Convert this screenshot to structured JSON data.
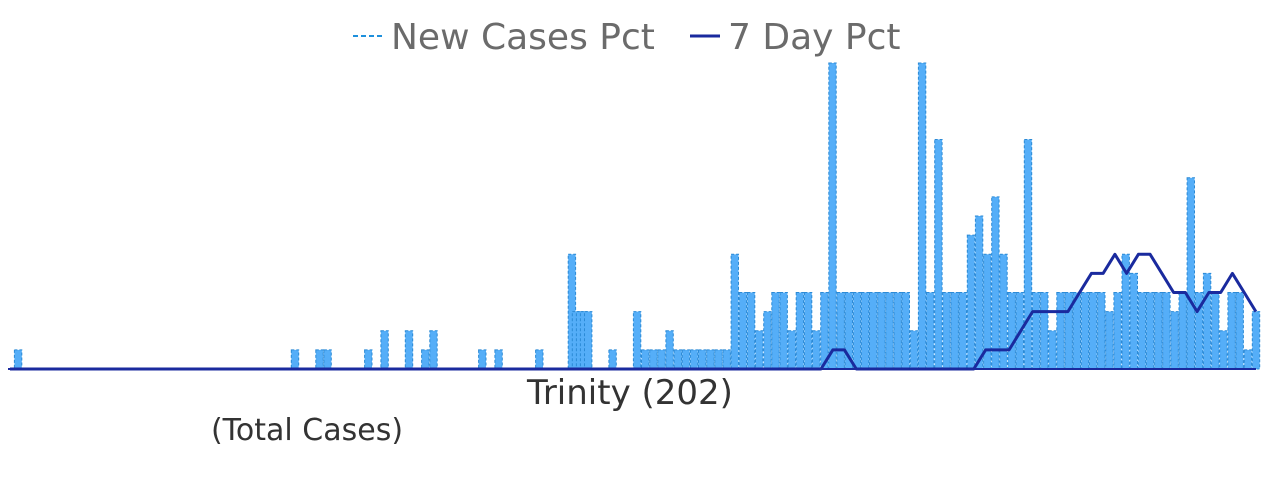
{
  "chart_data": {
    "type": "area",
    "xlabel": "Trinity (202)",
    "subtitle": "(Total Cases)",
    "legend": {
      "position": "top-center",
      "items": [
        {
          "name": "New Cases Pct",
          "style": "dashed",
          "color": "#1e90dc"
        },
        {
          "name": "7 Day Pct",
          "style": "solid",
          "color": "#1a2a9e"
        }
      ]
    },
    "colors": {
      "bars": "#55aef8",
      "bar_edge": "#2b8ad6",
      "line": "#1a2a9e",
      "baseline": "#1a2a9e"
    },
    "ylim": [
      0,
      16
    ],
    "grid": false,
    "series": [
      {
        "name": "New Cases Pct",
        "spikes": [
          [
            1,
            1
          ],
          [
            35,
            1
          ],
          [
            38,
            1
          ],
          [
            39,
            1
          ],
          [
            44,
            1
          ],
          [
            46,
            2
          ],
          [
            49,
            2
          ],
          [
            51,
            1
          ],
          [
            52,
            2
          ],
          [
            58,
            1
          ],
          [
            60,
            1
          ],
          [
            65,
            1
          ],
          [
            69,
            6
          ],
          [
            69.5,
            3
          ],
          [
            70,
            3
          ],
          [
            70.5,
            3
          ],
          [
            71,
            3
          ],
          [
            74,
            1
          ],
          [
            77,
            3
          ],
          [
            78,
            1
          ],
          [
            79,
            1
          ],
          [
            80,
            1
          ],
          [
            81,
            2
          ],
          [
            82,
            1
          ],
          [
            83,
            1
          ],
          [
            84,
            1
          ],
          [
            85,
            1
          ],
          [
            86,
            1
          ],
          [
            87,
            1
          ],
          [
            88,
            1
          ],
          [
            89,
            6
          ],
          [
            90,
            4
          ],
          [
            91,
            4
          ],
          [
            92,
            2
          ],
          [
            93,
            3
          ],
          [
            94,
            4
          ],
          [
            95,
            4
          ],
          [
            96,
            2
          ],
          [
            97,
            4
          ],
          [
            98,
            4
          ],
          [
            99,
            2
          ],
          [
            100,
            4
          ],
          [
            101,
            16
          ],
          [
            102,
            4
          ],
          [
            103,
            4
          ],
          [
            104,
            4
          ],
          [
            105,
            4
          ],
          [
            106,
            4
          ],
          [
            107,
            4
          ],
          [
            108,
            4
          ],
          [
            109,
            4
          ],
          [
            110,
            4
          ],
          [
            111,
            2
          ],
          [
            112,
            16
          ],
          [
            113,
            4
          ],
          [
            114,
            12
          ],
          [
            115,
            4
          ],
          [
            116,
            4
          ],
          [
            117,
            4
          ],
          [
            118,
            7
          ],
          [
            119,
            8
          ],
          [
            120,
            6
          ],
          [
            121,
            9
          ],
          [
            122,
            6
          ],
          [
            123,
            4
          ],
          [
            124,
            4
          ],
          [
            125,
            12
          ],
          [
            126,
            4
          ],
          [
            127,
            4
          ],
          [
            128,
            2
          ],
          [
            129,
            4
          ],
          [
            130,
            4
          ],
          [
            131,
            4
          ],
          [
            132,
            4
          ],
          [
            133,
            4
          ],
          [
            134,
            4
          ],
          [
            135,
            3
          ],
          [
            136,
            4
          ],
          [
            137,
            6
          ],
          [
            138,
            5
          ],
          [
            139,
            4
          ],
          [
            140,
            4
          ],
          [
            141,
            4
          ],
          [
            142,
            4
          ],
          [
            143,
            3
          ],
          [
            144,
            4
          ],
          [
            145,
            10
          ],
          [
            146,
            4
          ],
          [
            147,
            5
          ],
          [
            148,
            4
          ],
          [
            149,
            2
          ],
          [
            150,
            4
          ],
          [
            151,
            4
          ],
          [
            152,
            1
          ],
          [
            153,
            3
          ]
        ]
      },
      {
        "name": "7 Day Pct",
        "points": [
          [
            0,
            0
          ],
          [
            69,
            0
          ],
          [
            70,
            1
          ],
          [
            71,
            1
          ],
          [
            72,
            0
          ],
          [
            82,
            0
          ],
          [
            83,
            1
          ],
          [
            85,
            1
          ],
          [
            86,
            2
          ],
          [
            87,
            3
          ],
          [
            88,
            3
          ],
          [
            89,
            3
          ],
          [
            90,
            3
          ],
          [
            91,
            4
          ],
          [
            92,
            5
          ],
          [
            93,
            5
          ],
          [
            94,
            6
          ],
          [
            95,
            5
          ],
          [
            96,
            6
          ],
          [
            97,
            6
          ],
          [
            98,
            5
          ],
          [
            99,
            4
          ],
          [
            100,
            4
          ],
          [
            101,
            3
          ],
          [
            102,
            4
          ],
          [
            103,
            4
          ],
          [
            104,
            5
          ],
          [
            105,
            4
          ],
          [
            106,
            3
          ]
        ]
      }
    ]
  }
}
